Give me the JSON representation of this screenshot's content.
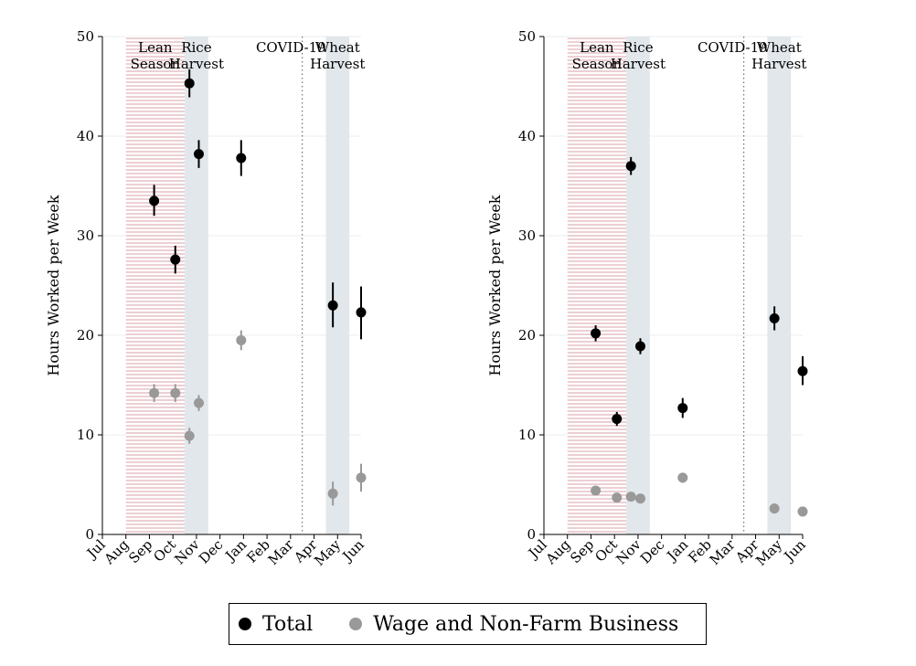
{
  "chart_data": [
    {
      "type": "scatter",
      "title": "",
      "xlabel": "",
      "ylabel": "Hours Worked per Week",
      "ylim": [
        0,
        50
      ],
      "yticks": [
        0,
        10,
        20,
        30,
        40,
        50
      ],
      "xticks": [
        "Jul",
        "Aug",
        "Sep",
        "Oct",
        "Nov",
        "Dec",
        "Jan",
        "Feb",
        "Mar",
        "Apr",
        "May",
        "Jun"
      ],
      "grid": true,
      "annotations": [
        {
          "text": "Lean\nSeason",
          "span": [
            "Aug",
            "Oct 1/2"
          ],
          "style": "hatched-red"
        },
        {
          "text": "Rice\nHarvest",
          "span": [
            "Oct 1/2",
            "Nov 1/2"
          ],
          "style": "shaded-gray"
        },
        {
          "text": "COVID-19",
          "at": "Mar 1/2",
          "style": "dotted-line"
        },
        {
          "text": "Wheat\nHarvest",
          "span": [
            "Apr 1/2",
            "May 1/2"
          ],
          "style": "shaded-gray"
        }
      ],
      "series": [
        {
          "name": "Total",
          "color": "#000000",
          "points": [
            {
              "x": "Sep",
              "y": 33.5,
              "ci": [
                32.0,
                35.1
              ]
            },
            {
              "x": "Oct",
              "y": 27.6,
              "ci": [
                26.2,
                29.0
              ]
            },
            {
              "x": "Nov",
              "y": 45.3,
              "ci": [
                43.9,
                46.7
              ]
            },
            {
              "x": "Nov/Dec",
              "y": 38.2,
              "ci": [
                36.8,
                39.6
              ]
            },
            {
              "x": "Jan",
              "y": 37.8,
              "ci": [
                36.0,
                39.6
              ]
            },
            {
              "x": "May",
              "y": 23.0,
              "ci": [
                20.8,
                25.3
              ]
            },
            {
              "x": "Jun",
              "y": 22.3,
              "ci": [
                19.6,
                24.9
              ]
            }
          ]
        },
        {
          "name": "Wage and Non-Farm Business",
          "color": "#999999",
          "points": [
            {
              "x": "Sep",
              "y": 14.2,
              "ci": [
                13.3,
                15.1
              ]
            },
            {
              "x": "Oct",
              "y": 14.2,
              "ci": [
                13.3,
                15.1
              ]
            },
            {
              "x": "Nov",
              "y": 9.9,
              "ci": [
                9.1,
                10.7
              ]
            },
            {
              "x": "Nov/Dec",
              "y": 13.2,
              "ci": [
                12.4,
                14.0
              ]
            },
            {
              "x": "Jan",
              "y": 19.5,
              "ci": [
                18.5,
                20.5
              ]
            },
            {
              "x": "May",
              "y": 4.1,
              "ci": [
                2.9,
                5.3
              ]
            },
            {
              "x": "Jun",
              "y": 5.7,
              "ci": [
                4.3,
                7.1
              ]
            }
          ]
        }
      ]
    },
    {
      "type": "scatter",
      "title": "",
      "xlabel": "",
      "ylabel": "Hours Worked per Week",
      "ylim": [
        0,
        50
      ],
      "yticks": [
        0,
        10,
        20,
        30,
        40,
        50
      ],
      "xticks": [
        "Jul",
        "Aug",
        "Sep",
        "Oct",
        "Nov",
        "Dec",
        "Jan",
        "Feb",
        "Mar",
        "Apr",
        "May",
        "Jun"
      ],
      "grid": true,
      "annotations": [
        {
          "text": "Lean\nSeason",
          "span": [
            "Aug",
            "Oct 1/2"
          ],
          "style": "hatched-red"
        },
        {
          "text": "Rice\nHarvest",
          "span": [
            "Oct 1/2",
            "Nov 1/2"
          ],
          "style": "shaded-gray"
        },
        {
          "text": "COVID-19",
          "at": "Mar 1/2",
          "style": "dotted-line"
        },
        {
          "text": "Wheat\nHarvest",
          "span": [
            "Apr 1/2",
            "May 1/2"
          ],
          "style": "shaded-gray"
        }
      ],
      "series": [
        {
          "name": "Total",
          "color": "#000000",
          "points": [
            {
              "x": "Sep",
              "y": 20.2,
              "ci": [
                19.4,
                21.0
              ]
            },
            {
              "x": "Oct",
              "y": 11.6,
              "ci": [
                10.9,
                12.3
              ]
            },
            {
              "x": "Nov",
              "y": 37.0,
              "ci": [
                36.1,
                37.9
              ]
            },
            {
              "x": "Nov/Dec",
              "y": 18.9,
              "ci": [
                18.1,
                19.7
              ]
            },
            {
              "x": "Jan",
              "y": 12.7,
              "ci": [
                11.7,
                13.7
              ]
            },
            {
              "x": "May",
              "y": 21.7,
              "ci": [
                20.5,
                22.9
              ]
            },
            {
              "x": "Jun",
              "y": 16.4,
              "ci": [
                15.0,
                17.9
              ]
            }
          ]
        },
        {
          "name": "Wage and Non-Farm Business",
          "color": "#999999",
          "points": [
            {
              "x": "Sep",
              "y": 4.4,
              "ci": [
                4.0,
                4.8
              ]
            },
            {
              "x": "Oct",
              "y": 3.7,
              "ci": [
                3.3,
                4.1
              ]
            },
            {
              "x": "Nov",
              "y": 3.8,
              "ci": [
                3.4,
                4.2
              ]
            },
            {
              "x": "Nov/Dec",
              "y": 3.6,
              "ci": [
                3.2,
                4.0
              ]
            },
            {
              "x": "Jan",
              "y": 5.7,
              "ci": [
                5.2,
                6.2
              ]
            },
            {
              "x": "May",
              "y": 2.6,
              "ci": [
                2.1,
                3.1
              ]
            },
            {
              "x": "Jun",
              "y": 2.3,
              "ci": [
                1.8,
                2.8
              ]
            }
          ]
        }
      ]
    }
  ],
  "legend": {
    "placement": "bottom-center",
    "entries": [
      {
        "label": "Total",
        "color": "#000000"
      },
      {
        "label": "Wage and Non-Farm Business",
        "color": "#999999"
      }
    ]
  },
  "colors": {
    "lean_season_hatch": "#d9a0a8",
    "harvest_shade": "#e2e7eb",
    "grid": "#eaeef1"
  }
}
